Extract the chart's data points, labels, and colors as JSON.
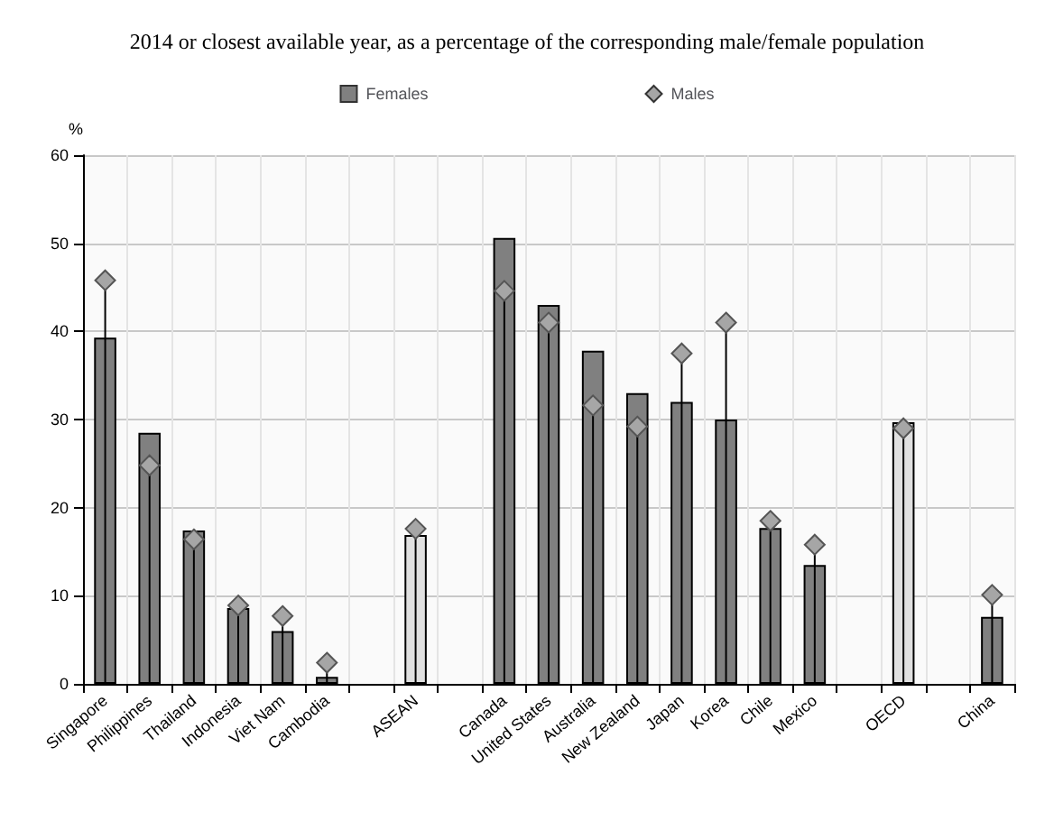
{
  "chart_data": {
    "type": "bar",
    "title": "2014 or closest available year, as a percentage of the corresponding male/female population",
    "ylabel": "%",
    "categories": [
      "Singapore",
      "Philippines",
      "Thailand",
      "Indonesia",
      "Viet Nam",
      "Cambodia",
      null,
      "ASEAN",
      null,
      "Canada",
      "United States",
      "Australia",
      "New Zealand",
      "Japan",
      "Korea",
      "Chile",
      "Mexico",
      null,
      "OECD",
      null,
      "China"
    ],
    "series": [
      {
        "name": "Females",
        "type": "bar",
        "color": "#808080",
        "colors": [
          "#808080",
          "#808080",
          "#808080",
          "#808080",
          "#808080",
          "#808080",
          "#808080",
          "#e0e0e0",
          "#808080",
          "#808080",
          "#808080",
          "#808080",
          "#808080",
          "#808080",
          "#808080",
          "#808080",
          "#808080",
          "#808080",
          "#e0e0e0",
          "#808080",
          "#808080"
        ],
        "values": [
          39.3,
          28.5,
          17.4,
          8.6,
          6,
          0.8,
          null,
          16.9,
          null,
          50.6,
          43,
          37.8,
          33,
          32,
          30,
          17.7,
          13.5,
          null,
          29.7,
          null,
          7.6
        ]
      },
      {
        "name": "Males",
        "type": "lollipop",
        "marker": "diamond",
        "color": "#a6a6a6",
        "values": [
          45.8,
          24.8,
          16.4,
          8.9,
          7.7,
          2.4,
          null,
          17.6,
          null,
          44.6,
          41,
          31.6,
          29.2,
          37.5,
          41,
          18.5,
          15.8,
          null,
          29,
          null,
          10.1
        ]
      }
    ],
    "ylim": [
      0,
      60
    ],
    "yticks": [
      0,
      10,
      20,
      30,
      40,
      50,
      60
    ],
    "grid": true,
    "legend": "top"
  }
}
